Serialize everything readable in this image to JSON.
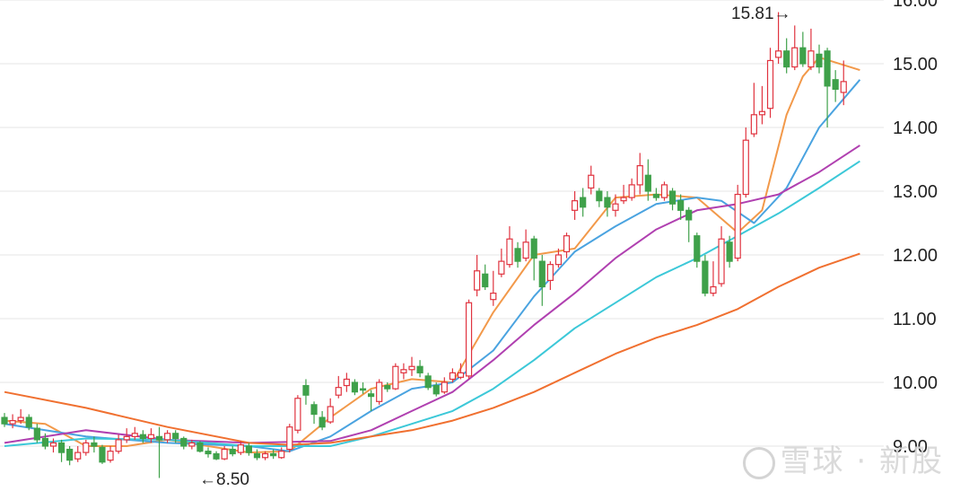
{
  "chart_data": {
    "type": "candlestick",
    "y_axis": {
      "position": "right",
      "ylim": [
        8.8,
        16.1
      ],
      "ticks": [
        "16.00",
        "15.00",
        "14.00",
        "13.00",
        "12.00",
        "11.00",
        "10.00",
        "9.00"
      ],
      "grid": true
    },
    "annotations": {
      "high_label": "15.81→",
      "low_label": "←8.50"
    },
    "colors": {
      "up": "#e0333f",
      "down": "#3fa14a",
      "ma5": "#f2994a",
      "ma10": "#4aa3e0",
      "ma20": "#b040b0",
      "ma30": "#3cc8d8",
      "ma60": "#f07030"
    },
    "candles": [
      [
        9.45,
        9.35,
        9.52,
        9.3
      ],
      [
        9.35,
        9.4,
        9.5,
        9.28
      ],
      [
        9.4,
        9.45,
        9.58,
        9.35
      ],
      [
        9.45,
        9.3,
        9.5,
        9.25
      ],
      [
        9.28,
        9.1,
        9.35,
        9.05
      ],
      [
        9.12,
        9.0,
        9.2,
        8.95
      ],
      [
        9.0,
        9.05,
        9.12,
        8.9
      ],
      [
        9.05,
        8.9,
        9.1,
        8.75
      ],
      [
        8.95,
        8.78,
        9.0,
        8.7
      ],
      [
        8.8,
        8.9,
        9.0,
        8.75
      ],
      [
        8.9,
        9.05,
        9.1,
        8.85
      ],
      [
        9.05,
        9.0,
        9.15,
        8.9
      ],
      [
        8.98,
        8.75,
        9.02,
        8.72
      ],
      [
        8.78,
        8.92,
        9.0,
        8.74
      ],
      [
        8.92,
        9.1,
        9.18,
        8.88
      ],
      [
        9.1,
        9.15,
        9.28,
        9.05
      ],
      [
        9.15,
        9.2,
        9.3,
        9.1
      ],
      [
        9.18,
        9.12,
        9.25,
        9.05
      ],
      [
        9.12,
        9.18,
        9.28,
        9.05
      ],
      [
        9.15,
        9.1,
        9.3,
        8.5
      ],
      [
        9.1,
        9.2,
        9.25,
        9.05
      ],
      [
        9.2,
        9.12,
        9.25,
        9.05
      ],
      [
        9.12,
        9.0,
        9.15,
        8.95
      ],
      [
        9.0,
        9.05,
        9.1,
        8.95
      ],
      [
        9.05,
        8.92,
        9.08,
        8.9
      ],
      [
        8.92,
        8.88,
        8.98,
        8.82
      ],
      [
        8.88,
        8.8,
        8.92,
        8.78
      ],
      [
        8.8,
        8.95,
        9.0,
        8.78
      ],
      [
        8.95,
        8.88,
        9.0,
        8.84
      ],
      [
        8.9,
        9.02,
        9.08,
        8.86
      ],
      [
        9.0,
        8.9,
        9.05,
        8.85
      ],
      [
        8.88,
        8.82,
        8.95,
        8.78
      ],
      [
        8.82,
        8.88,
        8.92,
        8.78
      ],
      [
        8.88,
        8.85,
        8.95,
        8.8
      ],
      [
        8.82,
        8.92,
        8.98,
        8.8
      ],
      [
        8.95,
        9.3,
        9.35,
        8.9
      ],
      [
        9.25,
        9.75,
        9.8,
        9.2
      ],
      [
        9.95,
        9.8,
        10.05,
        9.65
      ],
      [
        9.65,
        9.5,
        9.7,
        9.35
      ],
      [
        9.45,
        9.3,
        9.55,
        9.25
      ],
      [
        9.38,
        9.62,
        9.75,
        9.35
      ],
      [
        9.8,
        9.92,
        10.1,
        9.75
      ],
      [
        9.95,
        10.05,
        10.15,
        9.85
      ],
      [
        10.0,
        9.85,
        10.05,
        9.8
      ],
      [
        9.9,
        9.88,
        10.0,
        9.82
      ],
      [
        9.82,
        9.78,
        9.88,
        9.55
      ],
      [
        9.7,
        10.0,
        10.05,
        9.65
      ],
      [
        9.95,
        9.9,
        10.0,
        9.85
      ],
      [
        9.9,
        10.25,
        10.3,
        9.88
      ],
      [
        10.15,
        10.2,
        10.3,
        10.05
      ],
      [
        10.2,
        10.25,
        10.4,
        10.1
      ],
      [
        10.25,
        10.15,
        10.35,
        10.08
      ],
      [
        10.1,
        9.92,
        10.15,
        9.88
      ],
      [
        9.95,
        9.82,
        10.0,
        9.78
      ],
      [
        9.85,
        10.0,
        10.08,
        9.82
      ],
      [
        10.05,
        10.15,
        10.22,
        10.0
      ],
      [
        10.08,
        10.15,
        10.3,
        10.05
      ],
      [
        10.1,
        11.25,
        11.3,
        10.05
      ],
      [
        11.45,
        11.75,
        12.0,
        11.35
      ],
      [
        11.7,
        11.5,
        11.85,
        11.45
      ],
      [
        11.3,
        11.4,
        11.75,
        11.2
      ],
      [
        11.7,
        11.9,
        12.1,
        11.65
      ],
      [
        11.85,
        12.25,
        12.45,
        11.8
      ],
      [
        12.1,
        11.9,
        12.2,
        11.8
      ],
      [
        11.95,
        12.2,
        12.4,
        11.9
      ],
      [
        12.25,
        11.95,
        12.3,
        11.6
      ],
      [
        11.9,
        11.5,
        12.0,
        11.2
      ],
      [
        11.6,
        11.85,
        11.9,
        11.45
      ],
      [
        11.85,
        12.0,
        12.1,
        11.8
      ],
      [
        12.05,
        12.3,
        12.35,
        11.95
      ],
      [
        12.7,
        12.85,
        13.0,
        12.55
      ],
      [
        12.9,
        12.75,
        13.05,
        12.6
      ],
      [
        13.05,
        13.25,
        13.4,
        12.95
      ],
      [
        13.0,
        12.85,
        13.05,
        12.75
      ],
      [
        12.9,
        12.75,
        13.0,
        12.6
      ],
      [
        12.7,
        12.8,
        12.95,
        12.6
      ],
      [
        12.85,
        12.9,
        13.1,
        12.8
      ],
      [
        12.9,
        13.1,
        13.2,
        12.85
      ],
      [
        13.1,
        13.4,
        13.6,
        12.95
      ],
      [
        13.25,
        13.0,
        13.5,
        12.85
      ],
      [
        12.95,
        12.9,
        13.05,
        12.85
      ],
      [
        12.9,
        13.1,
        13.15,
        12.85
      ],
      [
        13.0,
        12.8,
        13.05,
        12.7
      ],
      [
        12.85,
        12.7,
        12.95,
        12.55
      ],
      [
        12.7,
        12.55,
        12.75,
        12.2
      ],
      [
        12.3,
        11.9,
        12.35,
        11.8
      ],
      [
        11.9,
        11.4,
        12.0,
        11.35
      ],
      [
        11.4,
        11.5,
        11.9,
        11.35
      ],
      [
        11.55,
        12.25,
        12.45,
        11.5
      ],
      [
        12.2,
        11.9,
        12.3,
        11.8
      ],
      [
        11.95,
        12.95,
        13.1,
        11.9
      ],
      [
        12.95,
        13.8,
        14.0,
        12.9
      ],
      [
        13.9,
        14.2,
        14.7,
        13.85
      ],
      [
        14.2,
        14.25,
        14.65,
        14.05
      ],
      [
        14.3,
        15.05,
        15.25,
        14.15
      ],
      [
        15.1,
        15.2,
        15.81,
        15.0
      ],
      [
        15.2,
        14.95,
        15.4,
        14.85
      ],
      [
        14.95,
        15.25,
        15.6,
        14.9
      ],
      [
        15.25,
        15.0,
        15.5,
        14.95
      ],
      [
        14.95,
        15.2,
        15.55,
        14.9
      ],
      [
        15.15,
        14.95,
        15.3,
        14.85
      ],
      [
        15.2,
        14.65,
        15.25,
        14.0
      ],
      [
        14.75,
        14.6,
        14.9,
        14.4
      ],
      [
        14.55,
        14.72,
        15.05,
        14.35
      ]
    ],
    "moving_averages": {
      "ma5": [
        [
          0,
          9.4
        ],
        [
          5,
          9.35
        ],
        [
          10,
          9.0
        ],
        [
          15,
          9.0
        ],
        [
          20,
          9.1
        ],
        [
          25,
          9.0
        ],
        [
          30,
          8.9
        ],
        [
          35,
          8.92
        ],
        [
          40,
          9.45
        ],
        [
          45,
          9.9
        ],
        [
          50,
          10.05
        ],
        [
          55,
          10.0
        ],
        [
          60,
          11.1
        ],
        [
          65,
          12.0
        ],
        [
          70,
          12.1
        ],
        [
          75,
          12.9
        ],
        [
          80,
          12.95
        ],
        [
          85,
          12.9
        ],
        [
          90,
          12.35
        ],
        [
          93,
          12.7
        ],
        [
          96,
          14.2
        ],
        [
          98,
          14.8
        ],
        [
          100,
          15.1
        ],
        [
          105,
          14.9
        ]
      ],
      "ma10": [
        [
          0,
          9.35
        ],
        [
          10,
          9.15
        ],
        [
          20,
          9.05
        ],
        [
          30,
          9.0
        ],
        [
          35,
          8.92
        ],
        [
          40,
          9.15
        ],
        [
          45,
          9.55
        ],
        [
          50,
          9.9
        ],
        [
          55,
          10.0
        ],
        [
          60,
          10.5
        ],
        [
          65,
          11.35
        ],
        [
          70,
          12.05
        ],
        [
          75,
          12.45
        ],
        [
          80,
          12.8
        ],
        [
          85,
          12.9
        ],
        [
          88,
          12.85
        ],
        [
          92,
          12.5
        ],
        [
          96,
          13.05
        ],
        [
          100,
          14.0
        ],
        [
          105,
          14.75
        ]
      ],
      "ma20": [
        [
          0,
          9.05
        ],
        [
          10,
          9.25
        ],
        [
          20,
          9.1
        ],
        [
          30,
          9.05
        ],
        [
          40,
          9.08
        ],
        [
          45,
          9.25
        ],
        [
          50,
          9.55
        ],
        [
          55,
          9.85
        ],
        [
          60,
          10.35
        ],
        [
          65,
          10.9
        ],
        [
          70,
          11.4
        ],
        [
          75,
          11.95
        ],
        [
          80,
          12.4
        ],
        [
          85,
          12.7
        ],
        [
          90,
          12.8
        ],
        [
          95,
          12.95
        ],
        [
          100,
          13.3
        ],
        [
          105,
          13.72
        ]
      ],
      "ma30": [
        [
          0,
          9.0
        ],
        [
          10,
          9.12
        ],
        [
          20,
          9.1
        ],
        [
          30,
          9.0
        ],
        [
          40,
          9.0
        ],
        [
          45,
          9.15
        ],
        [
          50,
          9.35
        ],
        [
          55,
          9.55
        ],
        [
          60,
          9.9
        ],
        [
          65,
          10.35
        ],
        [
          70,
          10.85
        ],
        [
          75,
          11.25
        ],
        [
          80,
          11.65
        ],
        [
          85,
          11.95
        ],
        [
          90,
          12.3
        ],
        [
          95,
          12.65
        ],
        [
          100,
          13.05
        ],
        [
          105,
          13.47
        ]
      ],
      "ma60": [
        [
          0,
          9.85
        ],
        [
          10,
          9.6
        ],
        [
          20,
          9.3
        ],
        [
          30,
          9.05
        ],
        [
          35,
          9.02
        ],
        [
          40,
          9.05
        ],
        [
          45,
          9.15
        ],
        [
          50,
          9.25
        ],
        [
          55,
          9.4
        ],
        [
          60,
          9.6
        ],
        [
          65,
          9.85
        ],
        [
          70,
          10.15
        ],
        [
          75,
          10.45
        ],
        [
          80,
          10.7
        ],
        [
          85,
          10.9
        ],
        [
          90,
          11.15
        ],
        [
          95,
          11.5
        ],
        [
          100,
          11.8
        ],
        [
          105,
          12.02
        ]
      ]
    }
  },
  "watermark": {
    "text": "雪球 · 新股"
  }
}
